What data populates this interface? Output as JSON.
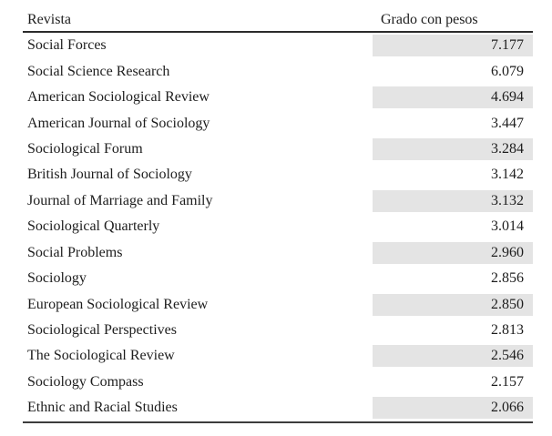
{
  "table": {
    "columns": [
      {
        "label": "Revista"
      },
      {
        "label": "Grado con pesos"
      }
    ],
    "rows": [
      {
        "journal": "Social Forces",
        "value": "7.177",
        "shaded": true
      },
      {
        "journal": "Social Science Research",
        "value": "6.079",
        "shaded": false
      },
      {
        "journal": "American Sociological Review",
        "value": "4.694",
        "shaded": true
      },
      {
        "journal": "American Journal of Sociology",
        "value": "3.447",
        "shaded": false
      },
      {
        "journal": "Sociological Forum",
        "value": "3.284",
        "shaded": true
      },
      {
        "journal": "British Journal of Sociology",
        "value": "3.142",
        "shaded": false
      },
      {
        "journal": "Journal of Marriage and Family",
        "value": "3.132",
        "shaded": true
      },
      {
        "journal": "Sociological Quarterly",
        "value": "3.014",
        "shaded": false
      },
      {
        "journal": "Social Problems",
        "value": "2.960",
        "shaded": true
      },
      {
        "journal": "Sociology",
        "value": "2.856",
        "shaded": false
      },
      {
        "journal": "European Sociological Review",
        "value": "2.850",
        "shaded": true
      },
      {
        "journal": "Sociological Perspectives",
        "value": "2.813",
        "shaded": false
      },
      {
        "journal": "The Sociological Review",
        "value": "2.546",
        "shaded": true
      },
      {
        "journal": "Sociology Compass",
        "value": "2.157",
        "shaded": false
      },
      {
        "journal": "Ethnic and Racial Studies",
        "value": "2.066",
        "shaded": true
      }
    ]
  },
  "colors": {
    "row_shade": "#e4e4e4",
    "rule_dark": "#2b2b2b",
    "rule_light": "#3d3d3d",
    "text": "#1d1d1d",
    "bg": "#ffffff"
  }
}
